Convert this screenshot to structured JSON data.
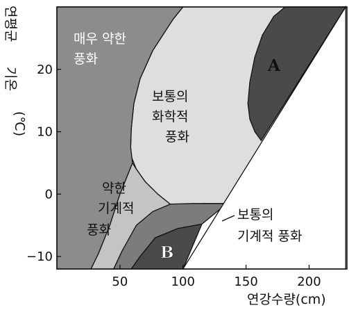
{
  "chart_data": {
    "type": "area",
    "title": "",
    "xlabel": "연강수량(cm)",
    "ylabel_line1": "연평균",
    "ylabel_line2": "기온",
    "ylabel_unit": "(℃)",
    "xlim": [
      0,
      230
    ],
    "ylim": [
      -12,
      30
    ],
    "x_ticks": [
      50,
      100,
      150,
      200
    ],
    "y_ticks": [
      -10,
      0,
      10,
      20
    ],
    "x_tick_labels": [
      "50",
      "100",
      "150",
      "200"
    ],
    "y_tick_labels": [
      "−10",
      "0",
      "10",
      "20"
    ],
    "colors": {
      "very_weak": "#8c8c8c",
      "chemical": "#dedede",
      "mechanical_weak": "#c4c4c4",
      "mechanical_moderate": "#7c7c7c",
      "strong": "#4a4a4a",
      "plain": "#ffffff"
    },
    "regions": [
      {
        "name": "very_weak",
        "label_lines": [
          "매우 약한",
          "풍화"
        ],
        "label_color": "white",
        "color": "very_weak",
        "boundary": [
          [
            0,
            30
          ],
          [
            100,
            30
          ],
          [
            92,
            28
          ],
          [
            76,
            23
          ],
          [
            66,
            18.5
          ],
          [
            61,
            14.5
          ],
          [
            59,
            10.5
          ],
          [
            58.5,
            7.5
          ],
          [
            60,
            5
          ],
          [
            57,
            3.5
          ],
          [
            50,
            0
          ],
          [
            42,
            -5
          ],
          [
            33,
            -9.5
          ],
          [
            27,
            -12
          ],
          [
            0,
            -12
          ]
        ]
      },
      {
        "name": "chemical",
        "label_lines": [
          "보통의",
          "화학적",
          "풍화"
        ],
        "label_color": "black",
        "color": "chemical",
        "boundary": [
          [
            100,
            30
          ],
          [
            229,
            30
          ],
          [
            183,
            13.5
          ],
          [
            171,
            18
          ],
          [
            159,
            24
          ],
          [
            149,
            30
          ],
          [
            149,
            30
          ],
          [
            138,
            30
          ],
          [
            229,
            30
          ],
          [
            229,
            30
          ],
          [
            135,
            -1.5
          ],
          [
            116,
            -1.5
          ],
          [
            98,
            -1.8
          ],
          [
            91,
            -1.8
          ],
          [
            80,
            0
          ],
          [
            70,
            2
          ],
          [
            63,
            4
          ],
          [
            59,
            6
          ],
          [
            58.5,
            7.5
          ],
          [
            59,
            10.5
          ],
          [
            61,
            14.5
          ],
          [
            66,
            18.5
          ],
          [
            76,
            23
          ],
          [
            92,
            28
          ]
        ]
      },
      {
        "name": "mechanical_weak",
        "label_lines": [
          "약한",
          "기계적",
          "풍화"
        ],
        "label_color": "black",
        "color": "mechanical_weak",
        "boundary": [
          [
            27,
            -12
          ],
          [
            33,
            -9.5
          ],
          [
            42,
            -5
          ],
          [
            50,
            0
          ],
          [
            57,
            3.5
          ],
          [
            60,
            5
          ],
          [
            63,
            4
          ],
          [
            70,
            2
          ],
          [
            80,
            0
          ],
          [
            91,
            -1.8
          ],
          [
            98,
            -1.8
          ],
          [
            108,
            -1.8
          ],
          [
            84,
            -2.5
          ],
          [
            65,
            -5.5
          ],
          [
            52,
            -9
          ],
          [
            45,
            -12
          ]
        ]
      },
      {
        "name": "mechanical_moderate",
        "label_lines": [
          "보통의",
          "기계적 풍화"
        ],
        "label_color": "black",
        "color": "mechanical_moderate",
        "boundary": [
          [
            45,
            -12
          ],
          [
            52,
            -9
          ],
          [
            63,
            -5
          ],
          [
            76,
            -2.8
          ],
          [
            90,
            -1.6
          ],
          [
            108,
            -1.5
          ],
          [
            135,
            -1.5
          ],
          [
            115,
            -4.8
          ],
          [
            96,
            -5.5
          ],
          [
            78,
            -7
          ],
          [
            66,
            -10
          ],
          [
            59,
            -12
          ]
        ]
      },
      {
        "name": "strong",
        "label_lines": [
          "B"
        ],
        "label_color": "white",
        "color": "strong",
        "boundary": [
          [
            59,
            -12
          ],
          [
            66,
            -10
          ],
          [
            78,
            -7
          ],
          [
            96,
            -5.5
          ],
          [
            115,
            -4.8
          ],
          [
            100,
            -12
          ]
        ]
      },
      {
        "name": "strong_a",
        "label_lines": [
          "A"
        ],
        "label_color": "black",
        "color": "strong",
        "boundary": [
          [
            229,
            30
          ],
          [
            181,
            30
          ],
          [
            171,
            28
          ],
          [
            161,
            24
          ],
          [
            152,
            18
          ],
          [
            150,
            14.5
          ],
          [
            154,
            13
          ],
          [
            163,
            11
          ],
          [
            162,
            8
          ]
        ]
      }
    ],
    "labels": {
      "very_weak": [
        "매우 약한",
        "풍화"
      ],
      "chemical": [
        "보통의",
        "화학적",
        "풍화"
      ],
      "mechanical_weak": [
        "약한",
        "기계적",
        "풍화"
      ],
      "mechanical_moderate": [
        "보통의",
        "기계적 풍화"
      ],
      "a": "A",
      "b": "B"
    }
  }
}
